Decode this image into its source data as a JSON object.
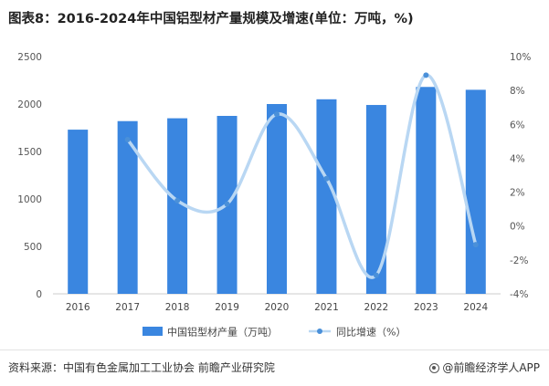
{
  "title": "图表8：2016-2024年中国铝型材产量规模及增速(单位：万吨，%)",
  "source": "资料来源：中国有色金属加工工业协会 前瞻产业研究院",
  "brand": "@前瞻经济学人APP",
  "brand_icon": "qianzhan-logo-icon",
  "colors": {
    "bar": "#3a86e0",
    "line": "#b9d7f3",
    "point": "#4a90d9"
  },
  "chart_data": {
    "type": "bar",
    "categories": [
      "2016",
      "2017",
      "2018",
      "2019",
      "2020",
      "2021",
      "2022",
      "2023",
      "2024"
    ],
    "series": [
      {
        "name": "中国铝型材产量（万吨）",
        "type": "bar",
        "axis": "left",
        "values": [
          1730,
          1820,
          1850,
          1875,
          2000,
          2050,
          1990,
          2180,
          2150
        ]
      },
      {
        "name": "同比增速（%）",
        "type": "line",
        "axis": "right",
        "smooth": true,
        "values": [
          null,
          5.1,
          1.5,
          1.3,
          6.6,
          2.8,
          -2.9,
          8.9,
          -1.1
        ]
      }
    ],
    "y_left": {
      "min": 0,
      "max": 2500,
      "step": 500,
      "tick_labels": [
        "0",
        "500",
        "1000",
        "1500",
        "2000",
        "2500"
      ]
    },
    "y_right": {
      "min": -4,
      "max": 10,
      "step": 2,
      "tick_labels": [
        "-4%",
        "-2%",
        "0%",
        "2%",
        "4%",
        "6%",
        "8%",
        "10%"
      ]
    },
    "grid": false,
    "legend_position": "bottom"
  }
}
